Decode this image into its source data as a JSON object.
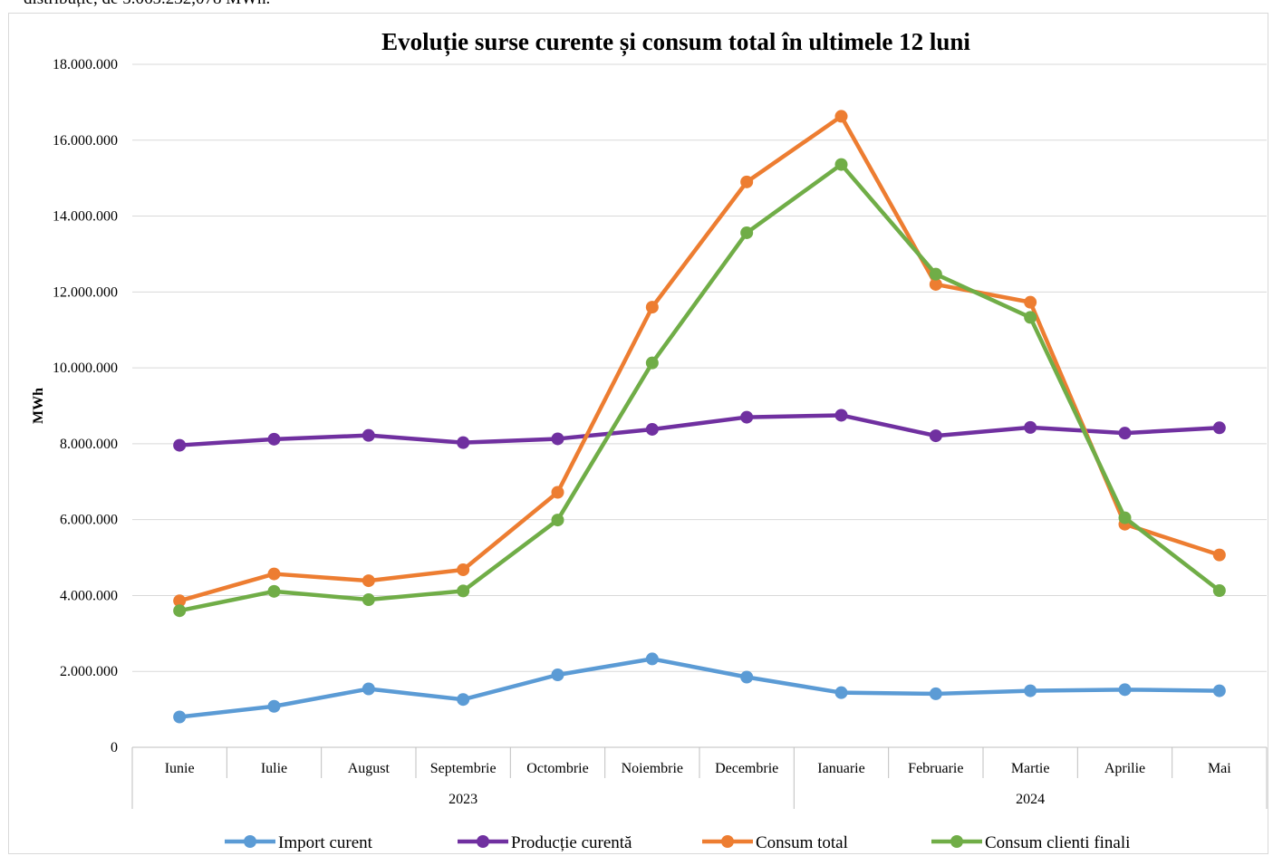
{
  "page": {
    "top_text": "distribuție, de 5.065.232,078 MWh."
  },
  "chart_data": {
    "type": "line",
    "title": "Evoluție surse curente și consum total în ultimele 12 luni",
    "xlabel": "",
    "ylabel": "MWh",
    "ylim": [
      0,
      18000000
    ],
    "yticks": [
      0,
      2000000,
      4000000,
      6000000,
      8000000,
      10000000,
      12000000,
      14000000,
      16000000,
      18000000
    ],
    "ytick_labels": [
      "0",
      "2.000.000",
      "4.000.000",
      "6.000.000",
      "8.000.000",
      "10.000.000",
      "12.000.000",
      "14.000.000",
      "16.000.000",
      "18.000.000"
    ],
    "categories": [
      "Iunie",
      "Iulie",
      "August",
      "Septembrie",
      "Octombrie",
      "Noiembrie",
      "Decembrie",
      "Ianuarie",
      "Februarie",
      "Martie",
      "Aprilie",
      "Mai"
    ],
    "year_groups": [
      {
        "label": "2023",
        "start": 0,
        "end": 6
      },
      {
        "label": "2024",
        "start": 7,
        "end": 11
      }
    ],
    "grid": true,
    "legend_position": "bottom",
    "series": [
      {
        "name": "Import curent",
        "color": "#5b9bd5",
        "values": [
          800000,
          1080000,
          1540000,
          1260000,
          1910000,
          2330000,
          1850000,
          1440000,
          1410000,
          1490000,
          1520000,
          1490000
        ]
      },
      {
        "name": "Producție curentă",
        "color": "#7030a0",
        "values": [
          7960000,
          8120000,
          8220000,
          8030000,
          8130000,
          8380000,
          8700000,
          8750000,
          8210000,
          8430000,
          8280000,
          8420000
        ]
      },
      {
        "name": "Consum total",
        "color": "#ed7d31",
        "values": [
          3860000,
          4570000,
          4390000,
          4680000,
          6720000,
          11600000,
          14900000,
          16630000,
          12200000,
          11730000,
          5880000,
          5070000
        ]
      },
      {
        "name": "Consum clienti finali",
        "color": "#70ad47",
        "values": [
          3600000,
          4110000,
          3890000,
          4120000,
          5990000,
          10130000,
          13560000,
          15360000,
          12470000,
          11330000,
          6050000,
          4130000
        ]
      }
    ]
  }
}
